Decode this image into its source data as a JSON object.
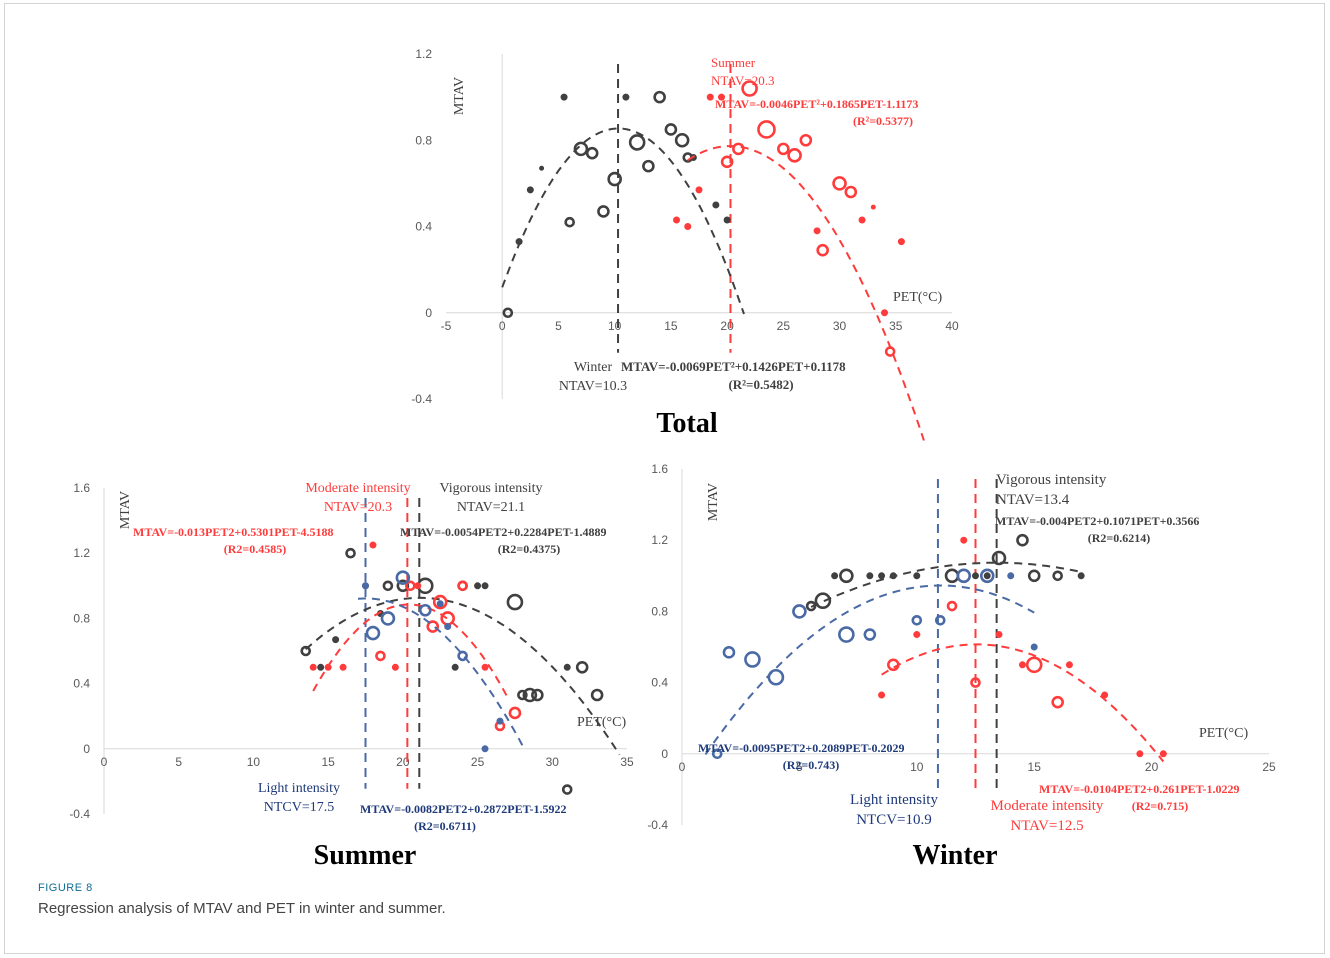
{
  "caption": {
    "label": "FIGURE 8",
    "text": "Regression analysis of MTAV and PET in winter and summer."
  },
  "colors": {
    "black": "#404040",
    "red": "#ff3b3b",
    "blue": "#4a6aa5",
    "navy": "#1f3a7a",
    "axis": "#d9d9d9"
  },
  "chart_data": [
    {
      "id": "total",
      "type": "scatter",
      "title": "Total",
      "ylabel": "MTAV",
      "xlabel": "PET(°C)",
      "xlim": [
        -5,
        40
      ],
      "ylim": [
        -0.4,
        1.2
      ],
      "xticks": [
        -5,
        0,
        5,
        10,
        15,
        20,
        25,
        30,
        35,
        40
      ],
      "yticks": [
        -0.4,
        0,
        0.4,
        0.8,
        1.2
      ],
      "series": [
        {
          "name": "Winter",
          "color": "black",
          "points": [
            [
              0.5,
              0,
              4
            ],
            [
              1.5,
              0.33,
              3
            ],
            [
              2.5,
              0.57,
              3
            ],
            [
              3.5,
              0.67,
              2
            ],
            [
              5.5,
              1.0,
              3
            ],
            [
              6,
              0.42,
              4
            ],
            [
              7,
              0.76,
              6
            ],
            [
              8,
              0.74,
              5
            ],
            [
              9,
              0.47,
              5
            ],
            [
              10,
              0.62,
              6
            ],
            [
              11,
              1.0,
              3
            ],
            [
              12,
              0.79,
              7
            ],
            [
              13,
              0.68,
              5
            ],
            [
              14,
              1.0,
              5
            ],
            [
              15,
              0.85,
              5
            ],
            [
              16,
              0.8,
              6
            ],
            [
              16.5,
              0.72,
              4
            ],
            [
              17,
              0.72,
              3
            ],
            [
              19,
              0.5,
              3
            ],
            [
              20,
              0.43,
              3
            ]
          ],
          "fit": {
            "a": -0.0069,
            "b": 0.1426,
            "c": 0.1178,
            "from": 0,
            "to": 21.5
          }
        },
        {
          "name": "Summer",
          "color": "red",
          "points": [
            [
              15.5,
              0.43,
              3
            ],
            [
              16.5,
              0.4,
              3
            ],
            [
              17.5,
              0.57,
              3
            ],
            [
              18.5,
              1.0,
              3
            ],
            [
              19.5,
              1.0,
              3
            ],
            [
              20,
              0.7,
              5
            ],
            [
              21,
              0.76,
              5
            ],
            [
              22,
              1.04,
              7
            ],
            [
              23.5,
              0.85,
              8
            ],
            [
              25,
              0.76,
              5
            ],
            [
              26,
              0.73,
              6
            ],
            [
              27,
              0.8,
              5
            ],
            [
              28,
              0.38,
              3
            ],
            [
              28.5,
              0.29,
              5
            ],
            [
              30,
              0.6,
              6
            ],
            [
              31,
              0.56,
              5
            ],
            [
              32,
              0.43,
              3
            ],
            [
              33,
              0.49,
              2
            ],
            [
              34,
              0,
              3
            ],
            [
              34.5,
              -0.18,
              4
            ],
            [
              35.5,
              0.33,
              3
            ]
          ],
          "fit": {
            "a": -0.0046,
            "b": 0.1865,
            "c": -1.1173,
            "from": 16.5,
            "to": 37.5
          }
        }
      ],
      "vlines": [
        {
          "x": 10.3,
          "color": "black"
        },
        {
          "x": 20.3,
          "color": "red"
        }
      ],
      "annotations": [
        {
          "key": "summer",
          "lines": [
            "Summer",
            "NTAV=20.3"
          ],
          "color": "red"
        },
        {
          "key": "summer_eq",
          "lines": [
            "MTAV=-0.0046PET²+0.1865PET-1.1173",
            "(R²=0.5377)"
          ],
          "color": "red"
        },
        {
          "key": "winter",
          "lines": [
            "Winter",
            "NTAV=10.3"
          ],
          "color": "black"
        },
        {
          "key": "winter_eq",
          "lines": [
            "MTAV=-0.0069PET²+0.1426PET+0.1178",
            "(R²=0.5482)"
          ],
          "color": "black"
        }
      ]
    },
    {
      "id": "summer",
      "type": "scatter",
      "title": "Summer",
      "ylabel": "MTAV",
      "xlabel": "PET(°C)",
      "xlim": [
        0,
        35
      ],
      "ylim": [
        -0.4,
        1.6
      ],
      "xticks": [
        0,
        5,
        10,
        15,
        20,
        25,
        30,
        35
      ],
      "yticks": [
        -0.4,
        0,
        0.4,
        0.8,
        1.2,
        1.6
      ],
      "series": [
        {
          "name": "Vigorous intensity",
          "color": "black",
          "points": [
            [
              13.5,
              0.6,
              4
            ],
            [
              14.5,
              0.5,
              3
            ],
            [
              15.5,
              0.67,
              3
            ],
            [
              16.5,
              1.2,
              4
            ],
            [
              17.5,
              1.0,
              3
            ],
            [
              18.5,
              0.83,
              3
            ],
            [
              19,
              1.0,
              4
            ],
            [
              20,
              1.0,
              5
            ],
            [
              21.5,
              1.0,
              7
            ],
            [
              23.5,
              0.5,
              3
            ],
            [
              24,
              1.0,
              4
            ],
            [
              25,
              1.0,
              3
            ],
            [
              25.5,
              1.0,
              3
            ],
            [
              27.5,
              0.9,
              7
            ],
            [
              28,
              0.33,
              4
            ],
            [
              28.5,
              0.33,
              6
            ],
            [
              29,
              0.33,
              5
            ],
            [
              31,
              0.5,
              3
            ],
            [
              32,
              0.5,
              5
            ],
            [
              33,
              0.33,
              5
            ],
            [
              31,
              -0.25,
              4
            ]
          ],
          "fit": {
            "a": -0.0054,
            "b": 0.2284,
            "c": -1.4889,
            "from": 13.5,
            "to": 34.5
          }
        },
        {
          "name": "Moderate intensity",
          "color": "red",
          "points": [
            [
              14,
              0.5,
              3
            ],
            [
              15,
              0.5,
              3
            ],
            [
              16,
              0.5,
              3
            ],
            [
              18,
              1.25,
              3
            ],
            [
              18.5,
              0.57,
              4
            ],
            [
              19.5,
              0.5,
              3
            ],
            [
              20.5,
              1.0,
              4
            ],
            [
              21,
              1.0,
              3
            ],
            [
              22,
              0.75,
              5
            ],
            [
              22.5,
              0.9,
              6
            ],
            [
              23,
              0.8,
              6
            ],
            [
              24,
              1.0,
              4
            ],
            [
              25.5,
              0.5,
              3
            ],
            [
              26.5,
              0.14,
              4
            ],
            [
              27.5,
              0.22,
              5
            ]
          ],
          "fit": {
            "a": -0.013,
            "b": 0.5301,
            "c": -4.5188,
            "from": 14,
            "to": 27
          }
        },
        {
          "name": "Light intensity",
          "color": "blue",
          "points": [
            [
              17.5,
              1.0,
              3
            ],
            [
              18,
              0.71,
              6
            ],
            [
              19,
              0.8,
              6
            ],
            [
              20,
              1.05,
              6
            ],
            [
              21.5,
              0.85,
              5
            ],
            [
              22.5,
              0.89,
              3
            ],
            [
              23,
              0.75,
              3
            ],
            [
              24,
              0.57,
              4
            ],
            [
              25.5,
              0,
              3
            ],
            [
              26.5,
              0.17,
              3
            ]
          ],
          "fit": {
            "a": -0.0082,
            "b": 0.2872,
            "c": -1.5922,
            "from": 17,
            "to": 28
          }
        }
      ],
      "vlines": [
        {
          "x": 17.5,
          "color": "blue"
        },
        {
          "x": 20.3,
          "color": "red"
        },
        {
          "x": 21.1,
          "color": "black"
        }
      ],
      "annotations": [
        {
          "key": "moderate",
          "lines": [
            "Moderate intensity",
            "NTAV=20.3"
          ],
          "color": "red"
        },
        {
          "key": "vigorous",
          "lines": [
            "Vigorous intensity",
            "NTAV=21.1"
          ],
          "color": "black"
        },
        {
          "key": "moderate_eq",
          "lines": [
            "MTAV=-0.013PET2+0.5301PET-4.5188",
            "(R2=0.4585)"
          ],
          "color": "red"
        },
        {
          "key": "vigorous_eq",
          "lines": [
            "MTAV=-0.0054PET2+0.2284PET-1.4889",
            "(R2=0.4375)"
          ],
          "color": "black"
        },
        {
          "key": "light",
          "lines": [
            "Light intensity",
            "NTCV=17.5"
          ],
          "color": "navy"
        },
        {
          "key": "light_eq",
          "lines": [
            "MTAV=-0.0082PET2+0.2872PET-1.5922",
            "(R2=0.6711)"
          ],
          "color": "navy"
        }
      ]
    },
    {
      "id": "winter",
      "type": "scatter",
      "title": "Winter",
      "ylabel": "MTAV",
      "xlabel": "PET(°C)",
      "xlim": [
        0,
        25
      ],
      "ylim": [
        -0.4,
        1.6
      ],
      "xticks": [
        0,
        5,
        10,
        15,
        20,
        25
      ],
      "yticks": [
        -0.4,
        0,
        0.4,
        0.8,
        1.2,
        1.6
      ],
      "series": [
        {
          "name": "Vigorous intensity",
          "color": "black",
          "points": [
            [
              5.5,
              0.83,
              4
            ],
            [
              6,
              0.86,
              7
            ],
            [
              6.5,
              1.0,
              3
            ],
            [
              7,
              1.0,
              6
            ],
            [
              8,
              1.0,
              3
            ],
            [
              8.5,
              1.0,
              3
            ],
            [
              9,
              1.0,
              3
            ],
            [
              10,
              1.0,
              3
            ],
            [
              11.5,
              1.0,
              6
            ],
            [
              12.5,
              1.0,
              3
            ],
            [
              13,
              1.0,
              3
            ],
            [
              13.5,
              1.1,
              6
            ],
            [
              14.5,
              1.2,
              5
            ],
            [
              15,
              1.0,
              5
            ],
            [
              16,
              1.0,
              4
            ],
            [
              17,
              1.0,
              3
            ]
          ],
          "fit": {
            "a": -0.004,
            "b": 0.1071,
            "c": 0.3566,
            "from": 5.5,
            "to": 17
          }
        },
        {
          "name": "Moderate intensity",
          "color": "red",
          "points": [
            [
              8.5,
              0.33,
              3
            ],
            [
              9,
              0.5,
              5
            ],
            [
              10,
              0.67,
              3
            ],
            [
              11.5,
              0.83,
              4
            ],
            [
              12,
              1.2,
              3
            ],
            [
              12.5,
              0.4,
              4
            ],
            [
              13.5,
              0.67,
              3
            ],
            [
              14.5,
              0.5,
              3
            ],
            [
              15,
              0.5,
              7
            ],
            [
              16,
              0.29,
              5
            ],
            [
              16.5,
              0.5,
              3
            ],
            [
              18,
              0.33,
              3
            ],
            [
              19.5,
              0,
              3
            ],
            [
              20.5,
              0,
              3
            ]
          ],
          "fit": {
            "a": -0.0104,
            "b": 0.261,
            "c": -1.0229,
            "from": 8.5,
            "to": 20.5
          }
        },
        {
          "name": "Light intensity",
          "color": "blue",
          "points": [
            [
              1.5,
              0,
              4
            ],
            [
              2,
              0.57,
              5
            ],
            [
              3,
              0.53,
              7
            ],
            [
              4,
              0.43,
              7
            ],
            [
              5,
              0.8,
              6
            ],
            [
              7,
              0.67,
              7
            ],
            [
              8,
              0.67,
              5
            ],
            [
              10,
              0.75,
              4
            ],
            [
              11,
              0.75,
              4
            ],
            [
              12,
              1.0,
              6
            ],
            [
              13,
              1.0,
              6
            ],
            [
              14,
              1.0,
              3
            ],
            [
              15,
              0.6,
              3
            ]
          ],
          "fit": {
            "a": -0.0095,
            "b": 0.2089,
            "c": -0.2029,
            "from": 1,
            "to": 15
          }
        }
      ],
      "vlines": [
        {
          "x": 10.9,
          "color": "blue"
        },
        {
          "x": 12.5,
          "color": "red"
        },
        {
          "x": 13.4,
          "color": "black"
        }
      ],
      "annotations": [
        {
          "key": "vigorous",
          "lines": [
            "Vigorous intensity",
            "NTAV=13.4"
          ],
          "color": "black"
        },
        {
          "key": "vigorous_eq",
          "lines": [
            "MTAV=-0.004PET2+0.1071PET+0.3566",
            "(R2=0.6214)"
          ],
          "color": "black"
        },
        {
          "key": "light_eq",
          "lines": [
            "MTAV=-0.0095PET2+0.2089PET-0.2029",
            "(R2=0.743)"
          ],
          "color": "navy"
        },
        {
          "key": "moderate_eq",
          "lines": [
            "MTAV=-0.0104PET2+0.261PET-1.0229",
            "(R2=0.715)"
          ],
          "color": "red"
        },
        {
          "key": "light",
          "lines": [
            "Light intensity",
            "NTCV=10.9"
          ],
          "color": "navy"
        },
        {
          "key": "moderate",
          "lines": [
            "Moderate intensity",
            "NTAV=12.5"
          ],
          "color": "red"
        }
      ]
    }
  ]
}
